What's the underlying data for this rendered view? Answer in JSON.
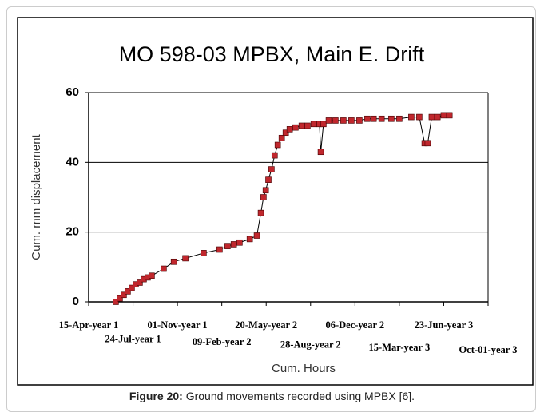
{
  "chart_data": {
    "type": "line",
    "title": "MO 598-03 MPBX, Main E. Drift",
    "x_label": "Cum. Hours",
    "y_label": "Cum. mm displacement",
    "xlim": [
      0,
      9
    ],
    "xticks": [
      {
        "value": 0,
        "label": "15-Apr-year 1"
      },
      {
        "value": 1,
        "label": "24-Jul-year 1"
      },
      {
        "value": 2,
        "label": "01-Nov-year 1"
      },
      {
        "value": 3,
        "label": "09-Feb-year 2"
      },
      {
        "value": 4,
        "label": "20-May-year 2"
      },
      {
        "value": 5,
        "label": "28-Aug-year 2"
      },
      {
        "value": 6,
        "label": "06-Dec-year 2"
      },
      {
        "value": 7,
        "label": "15-Mar-year 3"
      },
      {
        "value": 8,
        "label": "23-Jun-year 3"
      },
      {
        "value": 9,
        "label": "Oct-01-year 3"
      }
    ],
    "ylim": [
      0,
      60
    ],
    "yticks": [
      0,
      20,
      40,
      60
    ],
    "grid": true,
    "series": [
      {
        "color": "#c0272d",
        "x": [
          0.61,
          0.7,
          0.79,
          0.88,
          0.97,
          1.06,
          1.15,
          1.24,
          1.33,
          1.42,
          1.69,
          1.92,
          2.18,
          2.59,
          2.95,
          3.13,
          3.27,
          3.4,
          3.63,
          3.79,
          3.88,
          3.94,
          3.99,
          4.05,
          4.12,
          4.19,
          4.26,
          4.35,
          4.44,
          4.53,
          4.66,
          4.8,
          4.93,
          5.07,
          5.2,
          5.23,
          5.29,
          5.41,
          5.56,
          5.74,
          5.92,
          6.1,
          6.28,
          6.42,
          6.6,
          6.82,
          7.0,
          7.27,
          7.45,
          7.57,
          7.64,
          7.73,
          7.86,
          8.0,
          8.13
        ],
        "values": [
          0,
          1,
          2,
          3,
          4,
          5,
          5.5,
          6.5,
          7,
          7.5,
          9.5,
          11.5,
          12.5,
          14,
          15,
          16,
          16.5,
          17,
          18,
          19,
          25.5,
          30,
          32,
          35,
          38,
          42,
          45,
          47,
          48.5,
          49.5,
          50,
          50.5,
          50.5,
          51,
          51,
          43,
          51,
          52,
          52,
          52,
          52,
          52,
          52.5,
          52.5,
          52.5,
          52.5,
          52.5,
          53,
          53,
          45.5,
          45.5,
          53,
          53,
          53.5,
          53.5
        ]
      }
    ]
  },
  "caption": {
    "label": "Figure 20:",
    "text": " Ground movements recorded using MPBX [6]."
  }
}
